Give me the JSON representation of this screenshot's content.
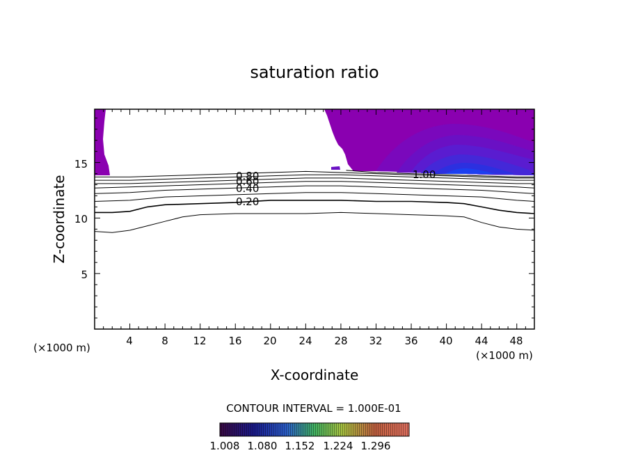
{
  "chart_data": {
    "type": "contour",
    "title": "saturation ratio",
    "xlabel": "X-coordinate",
    "ylabel": "Z-coordinate",
    "x_unit": "(×1000 m)",
    "z_unit": "(×1000 m)",
    "xlim": [
      0,
      50
    ],
    "ylim": [
      0,
      19.8
    ],
    "x_ticks": [
      "4",
      "8",
      "12",
      "16",
      "20",
      "24",
      "28",
      "32",
      "36",
      "40",
      "44",
      "48"
    ],
    "y_ticks": [
      "5",
      "10",
      "15"
    ],
    "contour_interval_text": "CONTOUR INTERVAL = 1.000E-01",
    "contour_labels": [
      "0.80",
      "0.60",
      "0.40",
      "0.20",
      "1.00"
    ],
    "colorbar_ticks": [
      "1.008",
      "1.080",
      "1.152",
      "1.224",
      "1.296"
    ],
    "fill_colors": [
      "#8a00b0",
      "#6a10c4",
      "#5a1cd0",
      "#4428d8",
      "#2c30e0",
      "#1c40f0"
    ],
    "contour_lines": [
      {
        "level": 0.1,
        "points": [
          [
            0,
            8.8
          ],
          [
            2,
            8.7
          ],
          [
            4,
            8.9
          ],
          [
            6,
            9.3
          ],
          [
            8,
            9.7
          ],
          [
            10,
            10.1
          ],
          [
            12,
            10.3
          ],
          [
            16,
            10.4
          ],
          [
            20,
            10.4
          ],
          [
            24,
            10.4
          ],
          [
            28,
            10.5
          ],
          [
            32,
            10.4
          ],
          [
            36,
            10.3
          ],
          [
            40,
            10.2
          ],
          [
            42,
            10.1
          ],
          [
            44,
            9.6
          ],
          [
            46,
            9.2
          ],
          [
            48,
            9.0
          ],
          [
            50,
            8.9
          ]
        ]
      },
      {
        "level": 0.2,
        "points": [
          [
            0,
            10.5
          ],
          [
            2,
            10.5
          ],
          [
            4,
            10.6
          ],
          [
            6,
            11.0
          ],
          [
            8,
            11.2
          ],
          [
            12,
            11.3
          ],
          [
            16,
            11.4
          ],
          [
            20,
            11.6
          ],
          [
            24,
            11.6
          ],
          [
            28,
            11.6
          ],
          [
            32,
            11.5
          ],
          [
            36,
            11.5
          ],
          [
            40,
            11.4
          ],
          [
            42,
            11.3
          ],
          [
            44,
            11.0
          ],
          [
            46,
            10.7
          ],
          [
            48,
            10.5
          ],
          [
            50,
            10.4
          ]
        ]
      },
      {
        "level": 0.3,
        "points": [
          [
            0,
            11.5
          ],
          [
            4,
            11.6
          ],
          [
            8,
            11.9
          ],
          [
            12,
            12.0
          ],
          [
            16,
            12.1
          ],
          [
            20,
            12.2
          ],
          [
            24,
            12.3
          ],
          [
            28,
            12.3
          ],
          [
            32,
            12.2
          ],
          [
            36,
            12.1
          ],
          [
            40,
            12.0
          ],
          [
            44,
            11.9
          ],
          [
            48,
            11.6
          ],
          [
            50,
            11.5
          ]
        ]
      },
      {
        "level": 0.4,
        "points": [
          [
            0,
            12.2
          ],
          [
            4,
            12.3
          ],
          [
            8,
            12.5
          ],
          [
            12,
            12.6
          ],
          [
            16,
            12.7
          ],
          [
            20,
            12.8
          ],
          [
            24,
            12.9
          ],
          [
            28,
            12.9
          ],
          [
            32,
            12.8
          ],
          [
            36,
            12.7
          ],
          [
            40,
            12.6
          ],
          [
            44,
            12.5
          ],
          [
            48,
            12.3
          ],
          [
            50,
            12.2
          ]
        ]
      },
      {
        "level": 0.5,
        "points": [
          [
            0,
            12.7
          ],
          [
            4,
            12.8
          ],
          [
            8,
            12.9
          ],
          [
            12,
            13.0
          ],
          [
            16,
            13.1
          ],
          [
            20,
            13.2
          ],
          [
            24,
            13.3
          ],
          [
            28,
            13.3
          ],
          [
            32,
            13.2
          ],
          [
            36,
            13.1
          ],
          [
            40,
            13.0
          ],
          [
            44,
            12.9
          ],
          [
            48,
            12.8
          ],
          [
            50,
            12.7
          ]
        ]
      },
      {
        "level": 0.6,
        "points": [
          [
            0,
            13.1
          ],
          [
            4,
            13.1
          ],
          [
            8,
            13.2
          ],
          [
            12,
            13.3
          ],
          [
            16,
            13.4
          ],
          [
            20,
            13.5
          ],
          [
            24,
            13.6
          ],
          [
            28,
            13.6
          ],
          [
            32,
            13.5
          ],
          [
            36,
            13.4
          ],
          [
            40,
            13.3
          ],
          [
            44,
            13.2
          ],
          [
            48,
            13.1
          ],
          [
            50,
            13.1
          ]
        ]
      },
      {
        "level": 0.7,
        "points": [
          [
            0,
            13.4
          ],
          [
            4,
            13.4
          ],
          [
            8,
            13.5
          ],
          [
            12,
            13.6
          ],
          [
            16,
            13.7
          ],
          [
            20,
            13.8
          ],
          [
            24,
            13.9
          ],
          [
            28,
            13.9
          ],
          [
            32,
            13.8
          ],
          [
            36,
            13.7
          ],
          [
            40,
            13.6
          ],
          [
            44,
            13.5
          ],
          [
            48,
            13.4
          ],
          [
            50,
            13.4
          ]
        ]
      },
      {
        "level": 0.8,
        "points": [
          [
            0,
            13.7
          ],
          [
            4,
            13.7
          ],
          [
            8,
            13.8
          ],
          [
            12,
            13.9
          ],
          [
            16,
            14.0
          ],
          [
            20,
            14.1
          ],
          [
            24,
            14.2
          ],
          [
            28,
            14.1
          ],
          [
            32,
            14.0
          ],
          [
            36,
            13.9
          ],
          [
            40,
            13.8
          ],
          [
            44,
            13.7
          ],
          [
            48,
            13.6
          ],
          [
            50,
            13.6
          ]
        ]
      },
      {
        "level": 1.0,
        "points": [
          [
            28.6,
            14.3
          ],
          [
            32,
            14.1
          ],
          [
            36,
            14.0
          ],
          [
            40,
            13.9
          ],
          [
            44,
            13.8
          ],
          [
            48,
            13.7
          ],
          [
            50,
            13.7
          ]
        ]
      }
    ]
  }
}
